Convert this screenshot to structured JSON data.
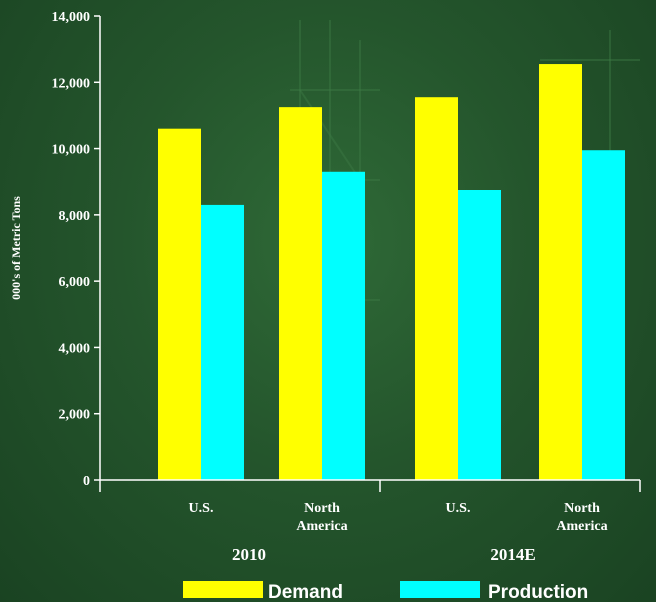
{
  "chart_data": {
    "type": "bar",
    "title": "",
    "xlabel": "",
    "ylabel": "000's of Metric Tons",
    "ylim": [
      0,
      14000
    ],
    "yticks": [
      0,
      2000,
      4000,
      6000,
      8000,
      10000,
      12000,
      14000
    ],
    "ytick_labels": [
      "0",
      "2,000",
      "4,000",
      "6,000",
      "8,000",
      "10,000",
      "12,000",
      "14,000"
    ],
    "categories": [
      "U.S.",
      "North America",
      "U.S.",
      "North America"
    ],
    "category_label_lines": [
      [
        "U.S."
      ],
      [
        "North",
        "America"
      ],
      [
        "U.S."
      ],
      [
        "North",
        "America"
      ]
    ],
    "groups": [
      {
        "label": "2010",
        "categories": [
          0,
          1
        ]
      },
      {
        "label": "2014E",
        "categories": [
          2,
          3
        ]
      }
    ],
    "series": [
      {
        "name": "Demand",
        "color": "#ffff00",
        "values": [
          10600,
          11250,
          11550,
          12550
        ]
      },
      {
        "name": "Production",
        "color": "#00ffff",
        "values": [
          8300,
          9300,
          8750,
          9950
        ]
      }
    ],
    "grid": false,
    "legend_position": "bottom",
    "colors": {
      "axis": "#ffffff",
      "text": "#ffffff",
      "background": "#24552c"
    }
  }
}
